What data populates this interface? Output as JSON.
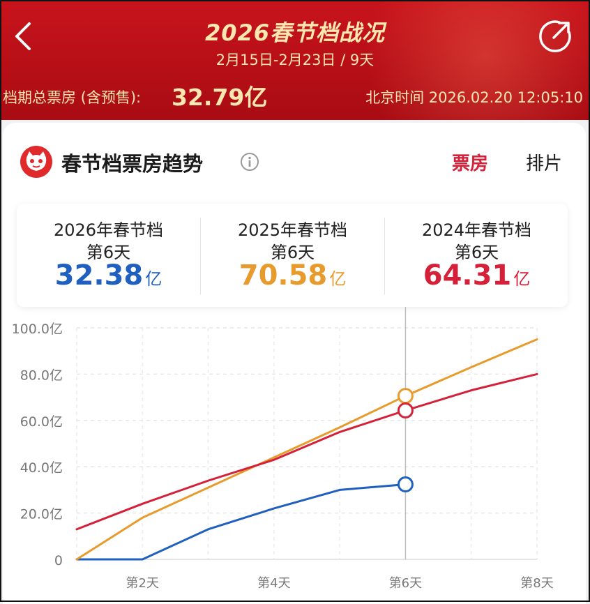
{
  "header": {
    "title": "2026春节档战况",
    "subtitle": "2月15日-2月23日 / 9天",
    "total_label": "档期总票房 (含预售):",
    "total_value": "32.79亿",
    "time": "北京时间 2026.02.20 12:05:10",
    "back_icon": "chevron-left-icon",
    "share_icon": "share-icon"
  },
  "section": {
    "title": "春节档票房趋势",
    "info_icon": "info-icon",
    "logo_icon": "maoyan-cat-logo-icon",
    "tabs": [
      {
        "label": "票房",
        "active": true
      },
      {
        "label": "排片",
        "active": false
      }
    ]
  },
  "stats": [
    {
      "year_label": "2026年春节档",
      "day_label": "第6天",
      "value": "32.38",
      "unit": "亿",
      "color": "#1f5fbf"
    },
    {
      "year_label": "2025年春节档",
      "day_label": "第6天",
      "value": "70.58",
      "unit": "亿",
      "color": "#e79b2c"
    },
    {
      "year_label": "2024年春节档",
      "day_label": "第6天",
      "value": "64.31",
      "unit": "亿",
      "color": "#d5203a"
    }
  ],
  "chart_data": {
    "type": "line",
    "x": [
      1,
      2,
      3,
      4,
      5,
      6,
      7,
      8
    ],
    "x_ticks": [
      "第2天",
      "第4天",
      "第6天",
      "第8天"
    ],
    "x_tick_values": [
      2,
      4,
      6,
      8
    ],
    "y_ticks": [
      "0",
      "20.0亿",
      "40.0亿",
      "60.0亿",
      "80.0亿",
      "100.0亿"
    ],
    "y_tick_values": [
      0,
      20,
      40,
      60,
      80,
      100
    ],
    "ylim": [
      0,
      100
    ],
    "xlim": [
      1,
      8
    ],
    "grid": true,
    "highlight_x": 6,
    "series": [
      {
        "color": "#1f5fbf",
        "x": [
          1,
          2,
          3,
          4,
          5,
          6
        ],
        "values": [
          0,
          0,
          13,
          22,
          30,
          32.38
        ]
      },
      {
        "color": "#e79b2c",
        "x": [
          1,
          2,
          3,
          4,
          5,
          6,
          7,
          8
        ],
        "values": [
          0,
          18,
          31,
          44,
          57,
          70.58,
          83,
          95
        ]
      },
      {
        "color": "#d5203a",
        "x": [
          1,
          2,
          3,
          4,
          5,
          6,
          7,
          8
        ],
        "values": [
          13,
          24,
          34,
          43,
          55,
          64.31,
          73,
          80
        ]
      }
    ]
  }
}
